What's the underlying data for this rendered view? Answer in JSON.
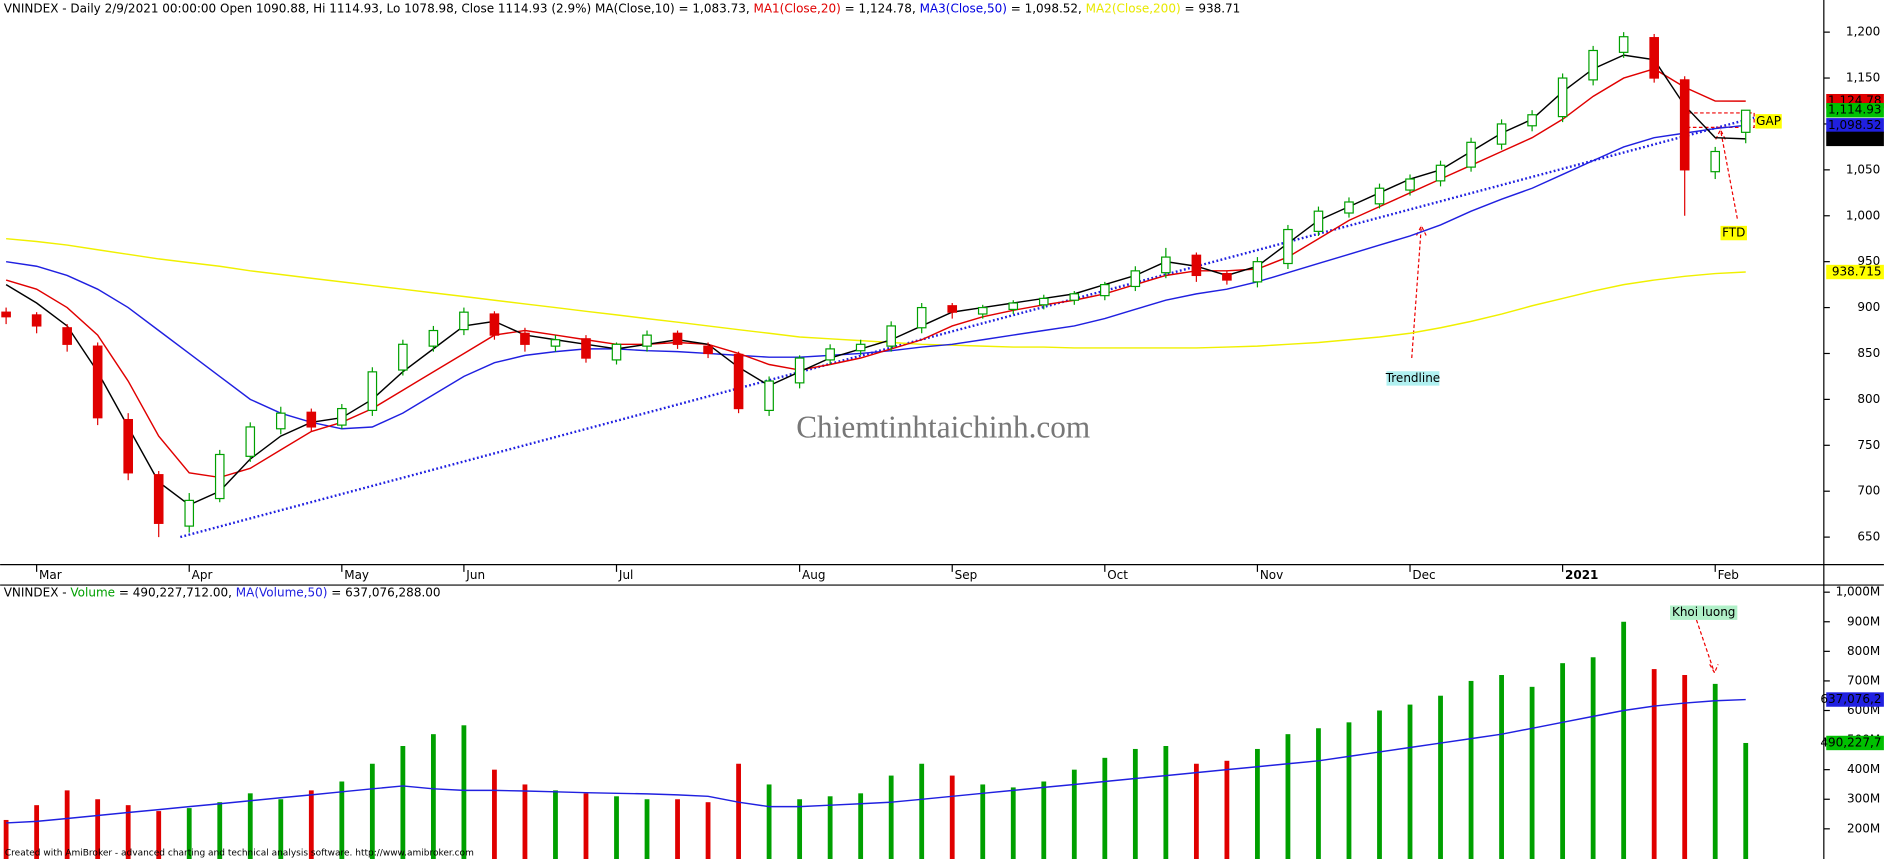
{
  "chart_data": {
    "type": "candlestick",
    "title_parts": [
      {
        "text": "VNINDEX - Daily 2/9/2021 00:00:00 Open 1090.88, Hi 1114.93, Lo 1078.98, Close 1114.93 (2.9%) ",
        "color": "#000000"
      },
      {
        "text": "MA(Close,10) = 1,083.73, ",
        "color": "#000000"
      },
      {
        "text": "MA1(Close,20)",
        "color": "#e00000"
      },
      {
        "text": " = 1,124.78, ",
        "color": "#000000"
      },
      {
        "text": "MA3(Close,50)",
        "color": "#0000e0"
      },
      {
        "text": " = 1,098.52, ",
        "color": "#000000"
      },
      {
        "text": "MA2(Close,200)",
        "color": "#e8e800"
      },
      {
        "text": " = 938.71",
        "color": "#000000"
      }
    ],
    "categories": [
      null,
      "Mar",
      null,
      null,
      null,
      null,
      "Apr",
      null,
      null,
      null,
      null,
      "May",
      null,
      null,
      null,
      "Jun",
      null,
      null,
      null,
      null,
      "Jul",
      null,
      null,
      null,
      null,
      null,
      "Aug",
      null,
      null,
      null,
      null,
      "Sep",
      null,
      null,
      null,
      null,
      "Oct",
      null,
      null,
      null,
      null,
      "Nov",
      null,
      null,
      null,
      null,
      "Dec",
      null,
      null,
      null,
      null,
      "2021",
      null,
      null,
      null,
      null,
      "Feb",
      null
    ],
    "open": [
      895,
      892,
      878,
      858,
      778,
      718,
      662,
      692,
      738,
      768,
      786,
      772,
      788,
      832,
      858,
      876,
      893,
      872,
      858,
      866,
      843,
      858,
      872,
      858,
      849,
      788,
      818,
      843,
      853,
      858,
      878,
      902,
      893,
      898,
      903,
      908,
      913,
      923,
      938,
      957,
      937,
      928,
      948,
      983,
      1003,
      1013,
      1028,
      1038,
      1053,
      1078,
      1098,
      1108,
      1148,
      1178,
      1194,
      1148,
      1048,
      1090.88
    ],
    "high": [
      900,
      895,
      882,
      862,
      785,
      722,
      698,
      745,
      775,
      792,
      790,
      795,
      835,
      865,
      880,
      900,
      896,
      878,
      870,
      870,
      862,
      875,
      875,
      862,
      852,
      825,
      848,
      860,
      865,
      885,
      905,
      905,
      903,
      908,
      914,
      918,
      928,
      945,
      965,
      960,
      940,
      955,
      990,
      1010,
      1020,
      1035,
      1045,
      1060,
      1085,
      1105,
      1115,
      1155,
      1185,
      1200,
      1198,
      1152,
      1075,
      1114.93
    ],
    "low": [
      882,
      872,
      852,
      772,
      712,
      650,
      655,
      688,
      732,
      762,
      765,
      768,
      782,
      826,
      852,
      870,
      865,
      852,
      852,
      840,
      838,
      852,
      855,
      845,
      785,
      782,
      812,
      838,
      848,
      852,
      872,
      888,
      888,
      893,
      898,
      903,
      908,
      918,
      932,
      928,
      925,
      922,
      942,
      978,
      998,
      1008,
      1022,
      1032,
      1048,
      1072,
      1092,
      1102,
      1142,
      1172,
      1145,
      1000,
      1040,
      1078.98
    ],
    "close": [
      890,
      880,
      860,
      780,
      720,
      665,
      690,
      740,
      770,
      785,
      770,
      790,
      830,
      860,
      875,
      895,
      870,
      860,
      865,
      845,
      860,
      870,
      860,
      850,
      790,
      820,
      845,
      855,
      860,
      880,
      900,
      895,
      900,
      905,
      910,
      915,
      925,
      940,
      955,
      935,
      930,
      950,
      985,
      1005,
      1015,
      1030,
      1040,
      1055,
      1080,
      1100,
      1110,
      1150,
      1180,
      1195,
      1150,
      1050,
      1070,
      1114.93
    ],
    "up_color": "#00a000",
    "down_color": "#e00000",
    "series": [
      {
        "name": "MA(Close,10)",
        "color": "#000000",
        "values": [
          925,
          905,
          880,
          830,
          770,
          710,
          685,
          700,
          735,
          760,
          775,
          780,
          800,
          830,
          855,
          880,
          885,
          870,
          865,
          860,
          855,
          860,
          865,
          860,
          835,
          815,
          830,
          845,
          855,
          865,
          880,
          895,
          900,
          905,
          910,
          915,
          925,
          935,
          950,
          945,
          935,
          945,
          970,
          995,
          1010,
          1025,
          1040,
          1050,
          1070,
          1090,
          1105,
          1135,
          1160,
          1175,
          1170,
          1120,
          1085,
          1083.73
        ]
      },
      {
        "name": "MA1(Close,20)",
        "color": "#e00000",
        "values": [
          930,
          920,
          900,
          870,
          820,
          760,
          720,
          715,
          725,
          745,
          765,
          775,
          790,
          810,
          830,
          850,
          870,
          875,
          870,
          865,
          860,
          860,
          862,
          860,
          850,
          838,
          832,
          838,
          845,
          855,
          865,
          880,
          890,
          897,
          903,
          908,
          915,
          925,
          935,
          940,
          940,
          942,
          955,
          975,
          995,
          1010,
          1025,
          1040,
          1055,
          1070,
          1085,
          1105,
          1130,
          1150,
          1160,
          1140,
          1125,
          1124.78
        ]
      },
      {
        "name": "MA3(Close,50)",
        "color": "#2020e0",
        "values": [
          950,
          945,
          935,
          920,
          900,
          875,
          850,
          825,
          800,
          785,
          775,
          768,
          770,
          785,
          805,
          825,
          840,
          848,
          852,
          855,
          855,
          853,
          852,
          850,
          848,
          846,
          846,
          848,
          850,
          853,
          857,
          860,
          865,
          870,
          875,
          880,
          888,
          898,
          908,
          915,
          920,
          928,
          938,
          948,
          958,
          968,
          978,
          990,
          1005,
          1018,
          1030,
          1045,
          1060,
          1075,
          1085,
          1090,
          1095,
          1098.52
        ]
      },
      {
        "name": "MA2(Close,200)",
        "color": "#f0f000",
        "values": [
          975,
          972,
          968,
          963,
          958,
          953,
          949,
          945,
          940,
          936,
          932,
          928,
          924,
          920,
          916,
          912,
          908,
          904,
          900,
          896,
          892,
          888,
          884,
          880,
          876,
          872,
          868,
          866,
          864,
          862,
          860,
          859,
          858,
          857,
          857,
          856,
          856,
          856,
          856,
          856,
          857,
          858,
          860,
          862,
          865,
          868,
          872,
          878,
          885,
          893,
          902,
          910,
          918,
          925,
          930,
          934,
          937,
          938.71
        ]
      }
    ],
    "ylim": [
      620,
      1235
    ],
    "yticks": [
      650,
      700,
      750,
      800,
      850,
      900,
      950,
      {
        "value": 1000,
        "label": "1,000"
      },
      {
        "value": 1050,
        "label": "1,050"
      },
      {
        "value": 1100,
        "label": "1,100"
      },
      {
        "value": 1150,
        "label": "1,150"
      },
      {
        "value": 1200,
        "label": "1,200"
      }
    ],
    "price_flags": [
      {
        "value": 1124.78,
        "label": "1,124.78",
        "color": "#e00000"
      },
      {
        "value": 1114.93,
        "label": "1,114.93",
        "color": "#00c000"
      },
      {
        "value": 1098.52,
        "label": "1,098.52",
        "color": "#2020e0"
      },
      {
        "value": 1083.73,
        "label": "1,083.73",
        "color": "#000000"
      },
      {
        "value": 938.715,
        "label": "938.715",
        "color": "#ffff00"
      }
    ],
    "annotations": [
      {
        "text": "Trendline",
        "color": "#b0f0f0"
      },
      {
        "text": "FTD",
        "color": "#ffff00"
      },
      {
        "text": "GAP",
        "color": "#ffff00"
      }
    ],
    "watermark": "Chiemtinhtaichinh.com",
    "volume": {
      "title_parts": [
        {
          "text": "VNINDEX - ",
          "color": "#000000"
        },
        {
          "text": "Volume",
          "color": "#00a000"
        },
        {
          "text": " = 490,227,712.00, ",
          "color": "#000000"
        },
        {
          "text": "MA(Volume,50)",
          "color": "#2020e0"
        },
        {
          "text": " = 637,076,288.00",
          "color": "#000000"
        }
      ],
      "values": [
        230,
        280,
        330,
        300,
        280,
        260,
        270,
        290,
        320,
        300,
        330,
        360,
        420,
        480,
        520,
        550,
        400,
        350,
        330,
        320,
        310,
        300,
        300,
        290,
        420,
        350,
        300,
        310,
        320,
        380,
        420,
        380,
        350,
        340,
        360,
        400,
        440,
        470,
        480,
        420,
        430,
        470,
        520,
        540,
        560,
        600,
        620,
        650,
        700,
        720,
        680,
        760,
        780,
        900,
        740,
        720,
        690,
        490.227712
      ],
      "ma": {
        "name": "MA(Volume,50)",
        "color": "#2020e0",
        "values": [
          220,
          225,
          235,
          245,
          255,
          265,
          275,
          285,
          295,
          305,
          315,
          325,
          335,
          345,
          335,
          330,
          330,
          328,
          325,
          322,
          320,
          318,
          315,
          310,
          290,
          275,
          275,
          280,
          285,
          290,
          300,
          310,
          320,
          330,
          340,
          350,
          360,
          370,
          380,
          390,
          400,
          410,
          420,
          430,
          445,
          460,
          475,
          490,
          505,
          520,
          540,
          560,
          580,
          600,
          615,
          625,
          633,
          637.076288
        ]
      },
      "ylim": [
        98,
        1024
      ],
      "yticks": [
        {
          "value": 200,
          "label": "200M"
        },
        {
          "value": 300,
          "label": "300M"
        },
        {
          "value": 400,
          "label": "400M"
        },
        {
          "value": 500,
          "label": "500M"
        },
        {
          "value": 600,
          "label": "600M"
        },
        {
          "value": 700,
          "label": "700M"
        },
        {
          "value": 800,
          "label": "800M"
        },
        {
          "value": 900,
          "label": "900M"
        },
        {
          "value": 1000,
          "label": "1,000M"
        }
      ],
      "flags": [
        {
          "value": 637.0762,
          "label": "637,076,2",
          "color": "#2020e0"
        },
        {
          "value": 490.2277,
          "label": "490,227,7",
          "color": "#00c000"
        }
      ],
      "annotation": {
        "text": "Khoi luong",
        "color": "#b0f0c8"
      }
    },
    "footer": "Created with AmiBroker - advanced charting and technical analysis software. http://www.amibroker.com"
  }
}
